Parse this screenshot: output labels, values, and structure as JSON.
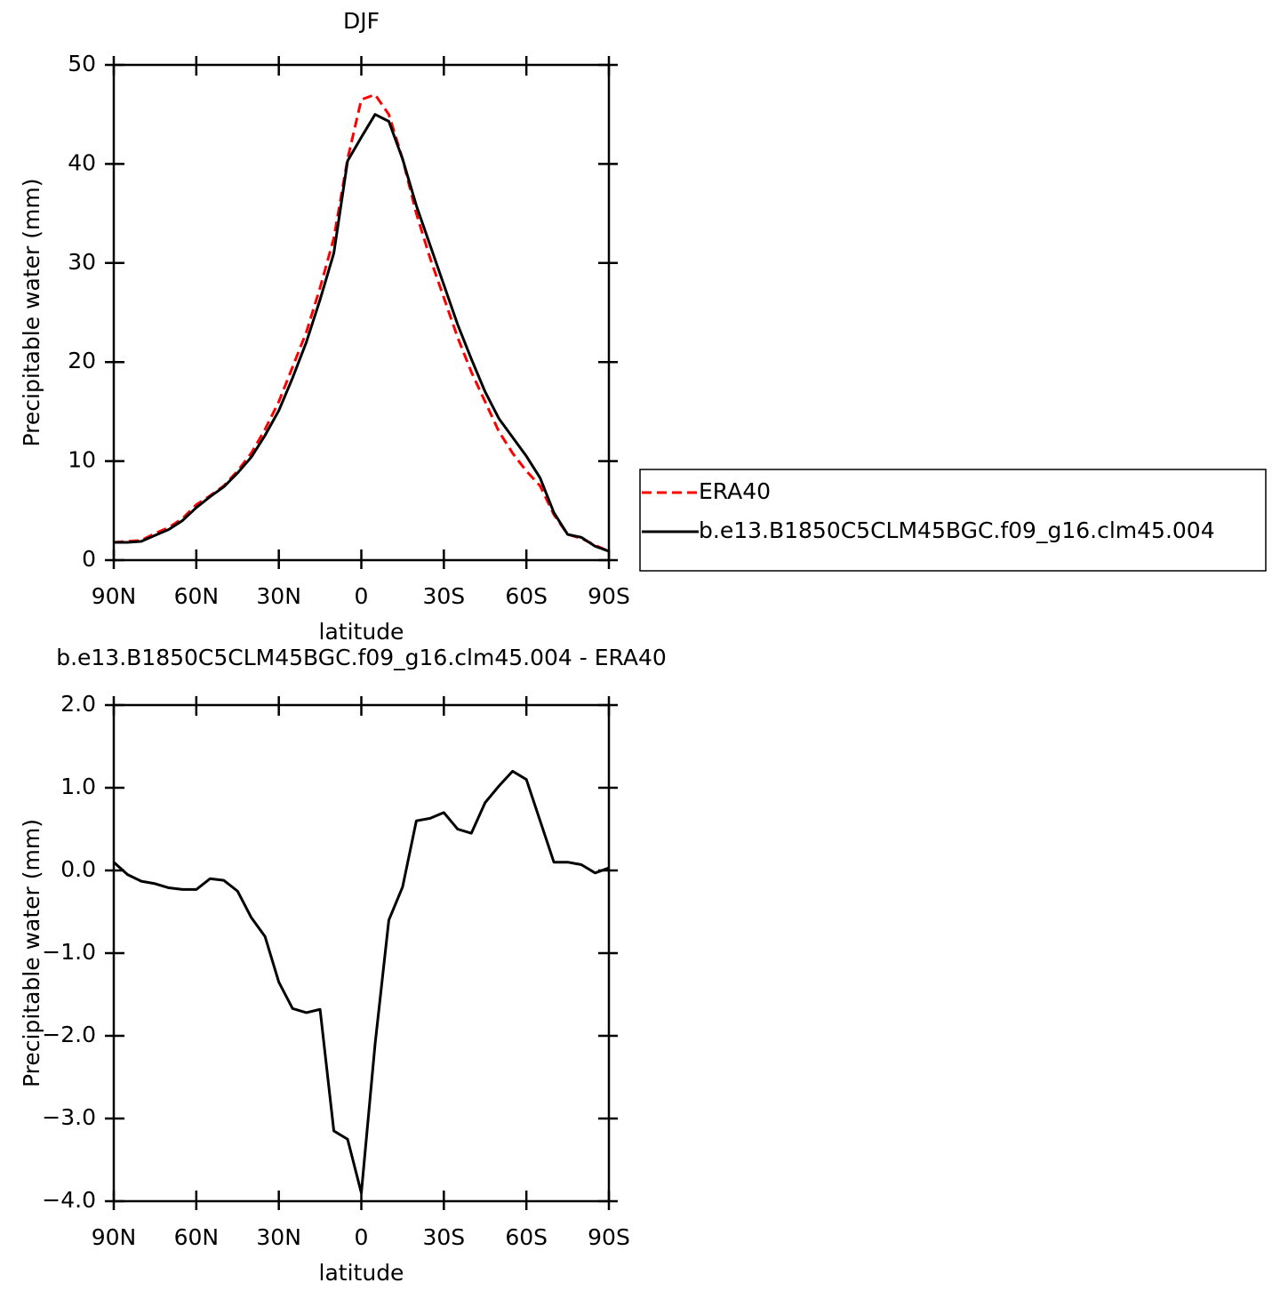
{
  "chart_data": [
    {
      "type": "line",
      "title": "DJF",
      "xlabel": "latitude",
      "ylabel": "Precipitable water (mm)",
      "x": [
        90,
        85,
        80,
        75,
        70,
        65,
        60,
        55,
        50,
        45,
        40,
        35,
        30,
        25,
        20,
        15,
        10,
        5,
        0,
        -5,
        -10,
        -15,
        -20,
        -25,
        -30,
        -35,
        -40,
        -45,
        -50,
        -55,
        -60,
        -65,
        -70,
        -75,
        -80,
        -85,
        -90
      ],
      "xlim": [
        90,
        -90
      ],
      "xticks": [
        {
          "value": 90,
          "label": "90N"
        },
        {
          "value": 60,
          "label": "60N"
        },
        {
          "value": 30,
          "label": "30N"
        },
        0,
        {
          "value": -30,
          "label": "30S"
        },
        {
          "value": -60,
          "label": "60S"
        },
        {
          "value": -90,
          "label": "90S"
        }
      ],
      "ylim": [
        0,
        50
      ],
      "yticks": [
        0,
        10,
        20,
        30,
        40,
        50
      ],
      "legend_position": "right",
      "series": [
        {
          "name": "ERA40",
          "color": "#ff0000",
          "dashed": true,
          "values": [
            1.8,
            1.9,
            2.0,
            2.7,
            3.3,
            4.2,
            5.6,
            6.5,
            7.5,
            9.0,
            10.8,
            13.2,
            16.0,
            19.5,
            23.0,
            27.5,
            32.5,
            40.5,
            46.5,
            47.0,
            45.0,
            40.5,
            35.0,
            30.5,
            26.5,
            22.5,
            19.0,
            16.0,
            13.0,
            10.8,
            9.0,
            7.5,
            4.6,
            2.6,
            2.2,
            1.5,
            0.9
          ]
        },
        {
          "name": "b.e13.B1850C5CLM45BGC.f09_g16.clm45.004",
          "color": "#000000",
          "dashed": false,
          "values": [
            1.8,
            1.8,
            1.9,
            2.5,
            3.1,
            4.0,
            5.3,
            6.4,
            7.4,
            8.8,
            10.4,
            12.6,
            15.1,
            18.4,
            22.0,
            26.3,
            31.0,
            40.3,
            42.7,
            45.0,
            44.3,
            40.5,
            35.8,
            31.8,
            27.8,
            23.8,
            20.3,
            17.0,
            14.3,
            12.4,
            10.5,
            8.3,
            4.8,
            2.6,
            2.3,
            1.4,
            0.9
          ]
        }
      ]
    },
    {
      "type": "line",
      "title": "b.e13.B1850C5CLM45BGC.f09_g16.clm45.004 - ERA40",
      "xlabel": "latitude",
      "ylabel": "Precipitable water (mm)",
      "x": [
        90,
        85,
        80,
        75,
        70,
        65,
        60,
        55,
        50,
        45,
        40,
        35,
        30,
        25,
        20,
        15,
        10,
        5,
        0,
        -5,
        -10,
        -15,
        -20,
        -25,
        -30,
        -35,
        -40,
        -45,
        -50,
        -55,
        -60,
        -65,
        -70,
        -75,
        -80,
        -85,
        -90
      ],
      "xlim": [
        90,
        -90
      ],
      "xticks": [
        {
          "value": 90,
          "label": "90N"
        },
        {
          "value": 60,
          "label": "60N"
        },
        {
          "value": 30,
          "label": "30N"
        },
        0,
        {
          "value": -30,
          "label": "30S"
        },
        {
          "value": -60,
          "label": "60S"
        },
        {
          "value": -90,
          "label": "90S"
        }
      ],
      "ylim": [
        -4,
        2
      ],
      "yticks": [
        {
          "value": -4,
          "label": "−4.0"
        },
        {
          "value": -3,
          "label": "−3.0"
        },
        {
          "value": -2,
          "label": "−2.0"
        },
        {
          "value": -1,
          "label": "−1.0"
        },
        {
          "value": 0,
          "label": "0.0"
        },
        {
          "value": 1,
          "label": "1.0"
        },
        {
          "value": 2,
          "label": "2.0"
        }
      ],
      "series": [
        {
          "color": "#000000",
          "values": [
            0.1,
            -0.05,
            -0.13,
            -0.16,
            -0.21,
            -0.23,
            -0.23,
            -0.1,
            -0.12,
            -0.25,
            -0.57,
            -0.8,
            -1.35,
            -1.67,
            -1.72,
            -1.68,
            -3.15,
            -3.25,
            -3.9,
            -2.1,
            -0.6,
            -0.2,
            0.6,
            0.63,
            0.7,
            0.5,
            0.45,
            0.82,
            1.02,
            1.2,
            1.1,
            0.6,
            0.1,
            0.1,
            0.07,
            -0.03,
            0.03
          ]
        }
      ]
    }
  ]
}
